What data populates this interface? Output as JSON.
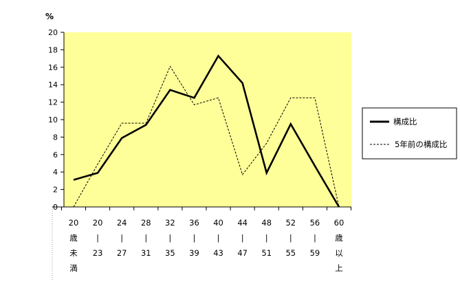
{
  "chart_data": {
    "type": "line",
    "title": "",
    "ylabel": "%",
    "xlabel": "",
    "ylim": [
      0,
      20
    ],
    "yticks": [
      0,
      2,
      4,
      6,
      8,
      10,
      12,
      14,
      16,
      18,
      20
    ],
    "grid": false,
    "legend_position": "right",
    "plot_background": "#ffff99",
    "categories": [
      [
        "20",
        "歳",
        "未",
        "満"
      ],
      [
        "20",
        "|",
        "23"
      ],
      [
        "24",
        "|",
        "27"
      ],
      [
        "28",
        "|",
        "31"
      ],
      [
        "32",
        "|",
        "35"
      ],
      [
        "36",
        "|",
        "39"
      ],
      [
        "40",
        "|",
        "43"
      ],
      [
        "44",
        "|",
        "47"
      ],
      [
        "48",
        "|",
        "51"
      ],
      [
        "52",
        "|",
        "55"
      ],
      [
        "56",
        "|",
        "59"
      ],
      [
        "60",
        "歳",
        "以",
        "上"
      ]
    ],
    "series": [
      {
        "name": "構成比",
        "style": "solid",
        "color": "#000000",
        "values": [
          3.1,
          3.9,
          7.9,
          9.4,
          13.4,
          12.5,
          17.3,
          14.2,
          3.9,
          9.5,
          4.7,
          0.0
        ]
      },
      {
        "name": "5年前の構成比",
        "style": "dashed",
        "color": "#000000",
        "values": [
          0.0,
          4.9,
          9.6,
          9.6,
          16.1,
          11.7,
          12.5,
          3.7,
          7.3,
          12.5,
          12.5,
          0.0
        ]
      }
    ]
  }
}
